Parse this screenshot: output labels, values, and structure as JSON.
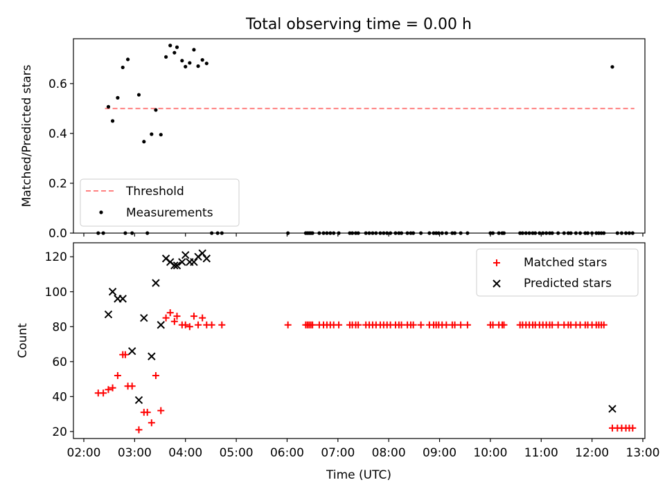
{
  "figure": {
    "title": "Total observing time = 0.00 h"
  },
  "chart_data": [
    {
      "type": "scatter",
      "ylabel": "Matched/Predicted stars",
      "xlabel": "",
      "xlim": [
        "02:00",
        "13:00"
      ],
      "ylim": [
        0,
        0.78
      ],
      "yticks": [
        0.0,
        0.2,
        0.4,
        0.6
      ],
      "ytick_labels": [
        "0.0",
        "0.2",
        "0.4",
        "0.6"
      ],
      "legend": {
        "placement": "lower-left",
        "entries": [
          "Threshold",
          "Measurements"
        ]
      },
      "threshold": {
        "name": "Threshold",
        "value": 0.5,
        "x_range": [
          "02:25",
          "12:50"
        ],
        "color": "#ff7f7f",
        "style": "dashed"
      },
      "series": [
        {
          "name": "Measurements",
          "color": "#000000",
          "points": [
            [
              "02:17",
              0.0
            ],
            [
              "02:23",
              0.0
            ],
            [
              "02:29",
              0.507
            ],
            [
              "02:34",
              0.45
            ],
            [
              "02:40",
              0.543
            ],
            [
              "02:46",
              0.665
            ],
            [
              "02:49",
              0.0
            ],
            [
              "02:52",
              0.697
            ],
            [
              "02:57",
              0.0
            ],
            [
              "03:05",
              0.555
            ],
            [
              "03:11",
              0.367
            ],
            [
              "03:15",
              0.0
            ],
            [
              "03:20",
              0.397
            ],
            [
              "03:25",
              0.494
            ],
            [
              "03:31",
              0.395
            ],
            [
              "03:37",
              0.707
            ],
            [
              "03:42",
              0.753
            ],
            [
              "03:47",
              0.724
            ],
            [
              "03:50",
              0.746
            ],
            [
              "03:56",
              0.692
            ],
            [
              "04:00",
              0.668
            ],
            [
              "04:05",
              0.683
            ],
            [
              "04:10",
              0.736
            ],
            [
              "04:15",
              0.67
            ],
            [
              "04:20",
              0.695
            ],
            [
              "04:25",
              0.681
            ],
            [
              "04:31",
              0.0
            ],
            [
              "04:38",
              0.0
            ],
            [
              "04:43",
              0.0
            ],
            [
              "06:01",
              0.0
            ],
            [
              "06:22",
              0.0
            ],
            [
              "06:24",
              0.0
            ],
            [
              "06:26",
              0.0
            ],
            [
              "06:28",
              0.0
            ],
            [
              "06:30",
              0.0
            ],
            [
              "06:38",
              0.0
            ],
            [
              "06:43",
              0.0
            ],
            [
              "06:47",
              0.0
            ],
            [
              "06:51",
              0.0
            ],
            [
              "06:55",
              0.0
            ],
            [
              "07:01",
              0.0
            ],
            [
              "07:14",
              0.0
            ],
            [
              "07:17",
              0.0
            ],
            [
              "07:21",
              0.0
            ],
            [
              "07:24",
              0.0
            ],
            [
              "07:33",
              0.0
            ],
            [
              "07:37",
              0.0
            ],
            [
              "07:41",
              0.0
            ],
            [
              "07:45",
              0.0
            ],
            [
              "07:50",
              0.0
            ],
            [
              "07:54",
              0.0
            ],
            [
              "07:58",
              0.0
            ],
            [
              "08:02",
              0.0
            ],
            [
              "08:08",
              0.0
            ],
            [
              "08:12",
              0.0
            ],
            [
              "08:15",
              0.0
            ],
            [
              "08:22",
              0.0
            ],
            [
              "08:26",
              0.0
            ],
            [
              "08:29",
              0.0
            ],
            [
              "08:38",
              0.0
            ],
            [
              "08:48",
              0.0
            ],
            [
              "08:53",
              0.0
            ],
            [
              "08:56",
              0.0
            ],
            [
              "08:59",
              0.0
            ],
            [
              "09:03",
              0.0
            ],
            [
              "09:08",
              0.0
            ],
            [
              "09:15",
              0.0
            ],
            [
              "09:18",
              0.0
            ],
            [
              "09:25",
              0.0
            ],
            [
              "09:33",
              0.0
            ],
            [
              "10:00",
              0.0
            ],
            [
              "10:03",
              0.0
            ],
            [
              "10:10",
              0.0
            ],
            [
              "10:14",
              0.0
            ],
            [
              "10:16",
              0.0
            ],
            [
              "10:35",
              0.0
            ],
            [
              "10:38",
              0.0
            ],
            [
              "10:42",
              0.0
            ],
            [
              "10:46",
              0.0
            ],
            [
              "10:50",
              0.0
            ],
            [
              "10:53",
              0.0
            ],
            [
              "10:58",
              0.0
            ],
            [
              "11:02",
              0.0
            ],
            [
              "11:06",
              0.0
            ],
            [
              "11:10",
              0.0
            ],
            [
              "11:13",
              0.0
            ],
            [
              "11:20",
              0.0
            ],
            [
              "11:27",
              0.0
            ],
            [
              "11:32",
              0.0
            ],
            [
              "11:35",
              0.0
            ],
            [
              "11:41",
              0.0
            ],
            [
              "11:46",
              0.0
            ],
            [
              "11:52",
              0.0
            ],
            [
              "11:55",
              0.0
            ],
            [
              "12:00",
              0.0
            ],
            [
              "12:05",
              0.0
            ],
            [
              "12:08",
              0.0
            ],
            [
              "12:11",
              0.0
            ],
            [
              "12:14",
              0.0
            ],
            [
              "12:24",
              0.667
            ],
            [
              "12:30",
              0.0
            ],
            [
              "12:35",
              0.0
            ],
            [
              "12:40",
              0.0
            ],
            [
              "12:44",
              0.0
            ],
            [
              "12:48",
              0.0
            ]
          ]
        }
      ],
      "grid": false
    },
    {
      "type": "scatter",
      "xlabel": "Time (UTC)",
      "ylabel": "Count",
      "xlim": [
        "02:00",
        "13:00"
      ],
      "ylim": [
        16,
        128
      ],
      "yticks": [
        20,
        40,
        60,
        80,
        100,
        120
      ],
      "ytick_labels": [
        "20",
        "40",
        "60",
        "80",
        "100",
        "120"
      ],
      "xticks": [
        "02:00",
        "03:00",
        "04:00",
        "05:00",
        "06:00",
        "07:00",
        "08:00",
        "09:00",
        "10:00",
        "11:00",
        "12:00",
        "13:00"
      ],
      "xtick_labels": [
        "02:00",
        "03:00",
        "04:00",
        "05:00",
        "06:00",
        "07:00",
        "08:00",
        "09:00",
        "10:00",
        "11:00",
        "12:00",
        "13:00"
      ],
      "legend": {
        "placement": "top-right",
        "entries": [
          "Matched stars",
          "Predicted stars"
        ]
      },
      "series": [
        {
          "name": "Matched stars",
          "marker": "plus",
          "color": "#ff0000",
          "points": [
            [
              "02:17",
              42
            ],
            [
              "02:23",
              42
            ],
            [
              "02:29",
              44
            ],
            [
              "02:34",
              45
            ],
            [
              "02:40",
              52
            ],
            [
              "02:46",
              64
            ],
            [
              "02:49",
              64
            ],
            [
              "02:52",
              46
            ],
            [
              "02:57",
              46
            ],
            [
              "03:05",
              21
            ],
            [
              "03:11",
              31
            ],
            [
              "03:15",
              31
            ],
            [
              "03:20",
              25
            ],
            [
              "03:25",
              52
            ],
            [
              "03:31",
              32
            ],
            [
              "03:37",
              85
            ],
            [
              "03:42",
              88
            ],
            [
              "03:47",
              83
            ],
            [
              "03:50",
              86
            ],
            [
              "03:56",
              81
            ],
            [
              "04:00",
              81
            ],
            [
              "04:05",
              80
            ],
            [
              "04:10",
              86
            ],
            [
              "04:15",
              81
            ],
            [
              "04:20",
              85
            ],
            [
              "04:25",
              81
            ],
            [
              "04:31",
              81
            ],
            [
              "04:43",
              81
            ],
            [
              "06:01",
              81
            ],
            [
              "06:22",
              81
            ],
            [
              "06:24",
              81
            ],
            [
              "06:26",
              81
            ],
            [
              "06:28",
              81
            ],
            [
              "06:30",
              81
            ],
            [
              "06:38",
              81
            ],
            [
              "06:43",
              81
            ],
            [
              "06:47",
              81
            ],
            [
              "06:51",
              81
            ],
            [
              "06:55",
              81
            ],
            [
              "07:01",
              81
            ],
            [
              "07:14",
              81
            ],
            [
              "07:17",
              81
            ],
            [
              "07:21",
              81
            ],
            [
              "07:24",
              81
            ],
            [
              "07:33",
              81
            ],
            [
              "07:37",
              81
            ],
            [
              "07:41",
              81
            ],
            [
              "07:45",
              81
            ],
            [
              "07:50",
              81
            ],
            [
              "07:54",
              81
            ],
            [
              "07:58",
              81
            ],
            [
              "08:02",
              81
            ],
            [
              "08:08",
              81
            ],
            [
              "08:12",
              81
            ],
            [
              "08:15",
              81
            ],
            [
              "08:22",
              81
            ],
            [
              "08:26",
              81
            ],
            [
              "08:29",
              81
            ],
            [
              "08:38",
              81
            ],
            [
              "08:48",
              81
            ],
            [
              "08:53",
              81
            ],
            [
              "08:56",
              81
            ],
            [
              "08:59",
              81
            ],
            [
              "09:03",
              81
            ],
            [
              "09:08",
              81
            ],
            [
              "09:15",
              81
            ],
            [
              "09:18",
              81
            ],
            [
              "09:25",
              81
            ],
            [
              "09:33",
              81
            ],
            [
              "10:00",
              81
            ],
            [
              "10:03",
              81
            ],
            [
              "10:10",
              81
            ],
            [
              "10:14",
              81
            ],
            [
              "10:16",
              81
            ],
            [
              "10:35",
              81
            ],
            [
              "10:38",
              81
            ],
            [
              "10:42",
              81
            ],
            [
              "10:46",
              81
            ],
            [
              "10:50",
              81
            ],
            [
              "10:53",
              81
            ],
            [
              "10:58",
              81
            ],
            [
              "11:02",
              81
            ],
            [
              "11:06",
              81
            ],
            [
              "11:10",
              81
            ],
            [
              "11:13",
              81
            ],
            [
              "11:20",
              81
            ],
            [
              "11:27",
              81
            ],
            [
              "11:32",
              81
            ],
            [
              "11:35",
              81
            ],
            [
              "11:41",
              81
            ],
            [
              "11:46",
              81
            ],
            [
              "11:52",
              81
            ],
            [
              "11:55",
              81
            ],
            [
              "12:00",
              81
            ],
            [
              "12:05",
              81
            ],
            [
              "12:08",
              81
            ],
            [
              "12:11",
              81
            ],
            [
              "12:14",
              81
            ],
            [
              "12:24",
              22
            ],
            [
              "12:30",
              22
            ],
            [
              "12:35",
              22
            ],
            [
              "12:40",
              22
            ],
            [
              "12:44",
              22
            ],
            [
              "12:48",
              22
            ]
          ]
        },
        {
          "name": "Predicted stars",
          "marker": "x",
          "color": "#000000",
          "points": [
            [
              "02:29",
              87
            ],
            [
              "02:34",
              100
            ],
            [
              "02:40",
              96
            ],
            [
              "02:46",
              96
            ],
            [
              "02:57",
              66
            ],
            [
              "03:05",
              38
            ],
            [
              "03:11",
              85
            ],
            [
              "03:20",
              63
            ],
            [
              "03:25",
              105
            ],
            [
              "03:31",
              81
            ],
            [
              "03:37",
              119
            ],
            [
              "03:42",
              117
            ],
            [
              "03:47",
              115
            ],
            [
              "03:50",
              115
            ],
            [
              "03:56",
              117
            ],
            [
              "04:00",
              121
            ],
            [
              "04:05",
              117
            ],
            [
              "04:10",
              117
            ],
            [
              "04:15",
              120
            ],
            [
              "04:20",
              122
            ],
            [
              "04:25",
              119
            ],
            [
              "12:24",
              33
            ]
          ]
        }
      ],
      "grid": false
    }
  ]
}
